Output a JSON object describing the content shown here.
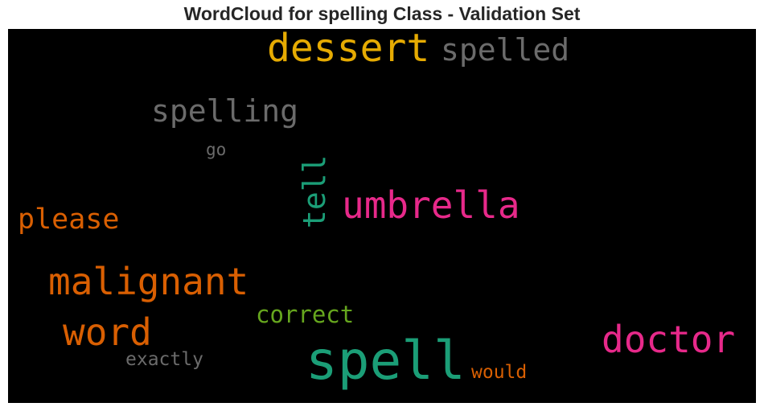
{
  "title": "WordCloud for spelling Class - Validation Set",
  "colors": {
    "background": "#000000",
    "gray": "#6b6b6b",
    "orange": "#e6ab02",
    "dark_orange": "#d95f02",
    "magenta": "#e7298a",
    "teal": "#1b9e77",
    "green": "#66a61e"
  },
  "chart_data": {
    "type": "wordcloud",
    "words": [
      {
        "text": "spell",
        "weight": 1.0,
        "color": "#1b9e77",
        "orientation": "horizontal"
      },
      {
        "text": "dessert",
        "weight": 0.72,
        "color": "#e6ab02",
        "orientation": "horizontal"
      },
      {
        "text": "umbrella",
        "weight": 0.7,
        "color": "#e7298a",
        "orientation": "horizontal"
      },
      {
        "text": "malignant",
        "weight": 0.69,
        "color": "#d95f02",
        "orientation": "horizontal"
      },
      {
        "text": "doctor",
        "weight": 0.69,
        "color": "#e7298a",
        "orientation": "horizontal"
      },
      {
        "text": "word",
        "weight": 0.69,
        "color": "#d95f02",
        "orientation": "horizontal"
      },
      {
        "text": "spelling",
        "weight": 0.58,
        "color": "#6b6b6b",
        "orientation": "horizontal"
      },
      {
        "text": "spelled",
        "weight": 0.58,
        "color": "#6b6b6b",
        "orientation": "horizontal"
      },
      {
        "text": "tell",
        "weight": 0.58,
        "color": "#1b9e77",
        "orientation": "vertical"
      },
      {
        "text": "please",
        "weight": 0.53,
        "color": "#d95f02",
        "orientation": "horizontal"
      },
      {
        "text": "correct",
        "weight": 0.44,
        "color": "#66a61e",
        "orientation": "horizontal"
      },
      {
        "text": "exactly",
        "weight": 0.35,
        "color": "#6b6b6b",
        "orientation": "horizontal"
      },
      {
        "text": "would",
        "weight": 0.35,
        "color": "#d95f02",
        "orientation": "horizontal"
      },
      {
        "text": "go",
        "weight": 0.32,
        "color": "#6b6b6b",
        "orientation": "horizontal"
      }
    ]
  }
}
